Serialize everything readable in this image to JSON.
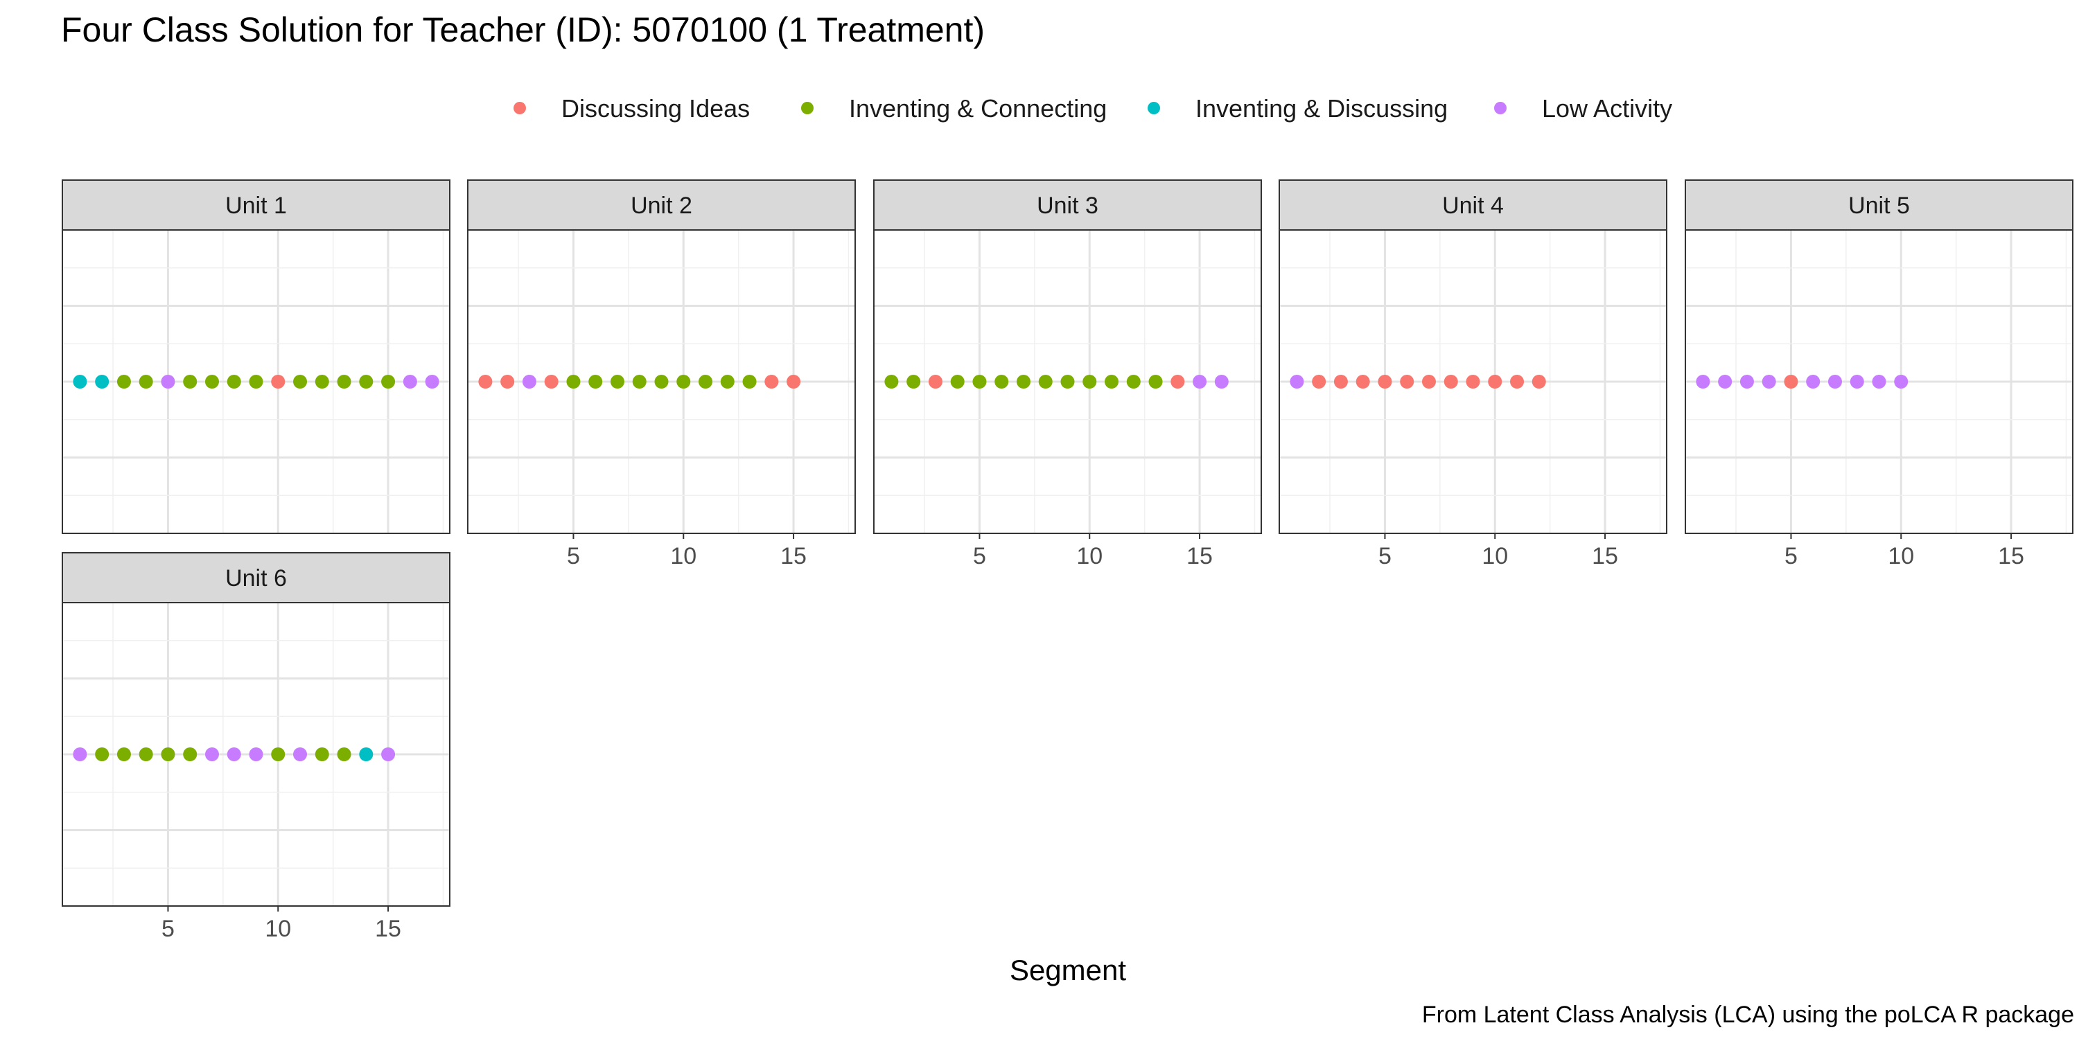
{
  "title": "Four Class Solution for Teacher (ID): 5070100 (1 Treatment)",
  "caption": "From Latent Class Analysis (LCA) using the poLCA R package",
  "chart_data": {
    "type": "scatter",
    "title": "Four Class Solution for Teacher (ID): 5070100 (1 Treatment)",
    "xlabel": "Segment",
    "ylabel": "",
    "xlim": [
      0.2,
      17.8
    ],
    "x_ticks": [
      5,
      10,
      15
    ],
    "grid": true,
    "legend_position": "top",
    "legend": [
      {
        "label": "Discussing Ideas",
        "color": "#F8766D"
      },
      {
        "label": "Inventing & Connecting",
        "color": "#7CAE00"
      },
      {
        "label": "Inventing & Discussing",
        "color": "#00BFC4"
      },
      {
        "label": "Low Activity",
        "color": "#C77CFF"
      }
    ],
    "panels": [
      {
        "label": "Unit 1",
        "x": [
          1,
          2,
          3,
          4,
          5,
          6,
          7,
          8,
          9,
          10,
          11,
          12,
          13,
          14,
          15,
          16,
          17
        ],
        "classes": [
          "Inventing & Discussing",
          "Inventing & Discussing",
          "Inventing & Connecting",
          "Inventing & Connecting",
          "Low Activity",
          "Inventing & Connecting",
          "Inventing & Connecting",
          "Inventing & Connecting",
          "Inventing & Connecting",
          "Discussing Ideas",
          "Inventing & Connecting",
          "Inventing & Connecting",
          "Inventing & Connecting",
          "Inventing & Connecting",
          "Inventing & Connecting",
          "Low Activity",
          "Low Activity"
        ]
      },
      {
        "label": "Unit 2",
        "x": [
          1,
          2,
          3,
          4,
          5,
          6,
          7,
          8,
          9,
          10,
          11,
          12,
          13,
          14,
          15
        ],
        "classes": [
          "Discussing Ideas",
          "Discussing Ideas",
          "Low Activity",
          "Discussing Ideas",
          "Inventing & Connecting",
          "Inventing & Connecting",
          "Inventing & Connecting",
          "Inventing & Connecting",
          "Inventing & Connecting",
          "Inventing & Connecting",
          "Inventing & Connecting",
          "Inventing & Connecting",
          "Inventing & Connecting",
          "Discussing Ideas",
          "Discussing Ideas"
        ]
      },
      {
        "label": "Unit 3",
        "x": [
          1,
          2,
          3,
          4,
          5,
          6,
          7,
          8,
          9,
          10,
          11,
          12,
          13,
          14,
          15,
          16
        ],
        "classes": [
          "Inventing & Connecting",
          "Inventing & Connecting",
          "Discussing Ideas",
          "Inventing & Connecting",
          "Inventing & Connecting",
          "Inventing & Connecting",
          "Inventing & Connecting",
          "Inventing & Connecting",
          "Inventing & Connecting",
          "Inventing & Connecting",
          "Inventing & Connecting",
          "Inventing & Connecting",
          "Inventing & Connecting",
          "Discussing Ideas",
          "Low Activity",
          "Low Activity"
        ]
      },
      {
        "label": "Unit 4",
        "x": [
          1,
          2,
          3,
          4,
          5,
          6,
          7,
          8,
          9,
          10,
          11,
          12
        ],
        "classes": [
          "Low Activity",
          "Discussing Ideas",
          "Discussing Ideas",
          "Discussing Ideas",
          "Discussing Ideas",
          "Discussing Ideas",
          "Discussing Ideas",
          "Discussing Ideas",
          "Discussing Ideas",
          "Discussing Ideas",
          "Discussing Ideas",
          "Discussing Ideas"
        ]
      },
      {
        "label": "Unit 5",
        "x": [
          1,
          2,
          3,
          4,
          5,
          6,
          7,
          8,
          9,
          10
        ],
        "classes": [
          "Low Activity",
          "Low Activity",
          "Low Activity",
          "Low Activity",
          "Discussing Ideas",
          "Low Activity",
          "Low Activity",
          "Low Activity",
          "Low Activity",
          "Low Activity"
        ]
      },
      {
        "label": "Unit 6",
        "x": [
          1,
          2,
          3,
          4,
          5,
          6,
          7,
          8,
          9,
          10,
          11,
          12,
          13,
          14,
          15
        ],
        "classes": [
          "Low Activity",
          "Inventing & Connecting",
          "Inventing & Connecting",
          "Inventing & Connecting",
          "Inventing & Connecting",
          "Inventing & Connecting",
          "Low Activity",
          "Low Activity",
          "Low Activity",
          "Inventing & Connecting",
          "Low Activity",
          "Inventing & Connecting",
          "Inventing & Connecting",
          "Inventing & Discussing",
          "Low Activity"
        ]
      }
    ]
  }
}
